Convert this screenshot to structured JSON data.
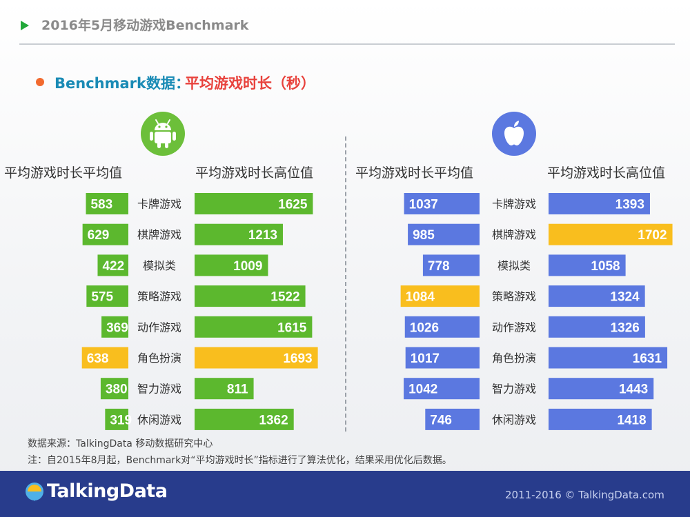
{
  "header": {
    "title": "2016年5月移动游戏Benchmark"
  },
  "subtitle": {
    "part1": "Benchmark数据：",
    "part2": "平均游戏时长（秒）"
  },
  "columns": {
    "android_avg": "平均游戏时长平均值",
    "android_high": "平均游戏时长高位值",
    "ios_avg": "平均游戏时长平均值",
    "ios_high": "平均游戏时长高位值"
  },
  "icons": {
    "android": "android-icon",
    "apple": "apple-icon"
  },
  "colors": {
    "green": "#5cb82e",
    "blue": "#5b78e0",
    "highlight": "#f9be1e"
  },
  "chart_data": [
    {
      "type": "bar",
      "platform": "android-icon",
      "categories": [
        "卡牌游戏",
        "棋牌游戏",
        "模拟类",
        "策略游戏",
        "动作游戏",
        "角色扮演",
        "智力游戏",
        "休闲游戏"
      ],
      "series": [
        {
          "name": "平均游戏时长平均值",
          "values": [
            583,
            629,
            422,
            575,
            369,
            638,
            380,
            319
          ],
          "highlight_index": 5
        },
        {
          "name": "平均游戏时长高位值",
          "values": [
            1625,
            1213,
            1009,
            1522,
            1615,
            1693,
            811,
            1362
          ],
          "highlight_index": 5
        }
      ]
    },
    {
      "type": "bar",
      "platform": "apple-icon",
      "categories": [
        "卡牌游戏",
        "棋牌游戏",
        "模拟类",
        "策略游戏",
        "动作游戏",
        "角色扮演",
        "智力游戏",
        "休闲游戏"
      ],
      "series": [
        {
          "name": "平均游戏时长平均值",
          "values": [
            1037,
            985,
            778,
            1084,
            1026,
            1017,
            1042,
            746
          ],
          "highlight_index": 3
        },
        {
          "name": "平均游戏时长高位值",
          "values": [
            1393,
            1702,
            1058,
            1324,
            1326,
            1631,
            1443,
            1418
          ],
          "highlight_index": 1
        }
      ]
    }
  ],
  "footer": {
    "source": "数据来源：TalkingData 移动数据研究中心",
    "note": "注：自2015年8月起，Benchmark对“平均游戏时长”指标进行了算法优化，结果采用优化后数据。"
  },
  "brand": {
    "logo": "TalkingData",
    "copyright": "2011-2016 © TalkingData.com"
  }
}
